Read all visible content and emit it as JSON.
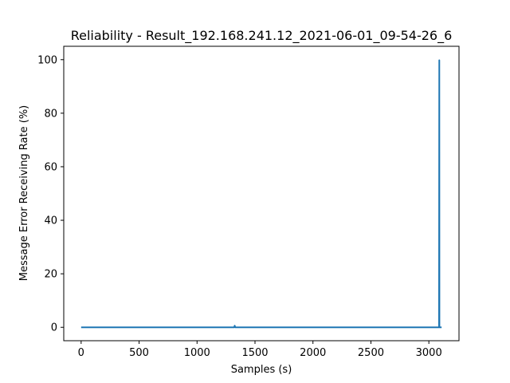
{
  "chart_data": {
    "type": "line",
    "title": "Reliability - Result_192.168.241.12_2021-06-01_09-54-26_6",
    "xlabel": "Samples (s)",
    "ylabel": "Message Error Receiving Rate (%)",
    "xlim": [
      -150,
      3260
    ],
    "ylim": [
      -5,
      105
    ],
    "xticks": [
      0,
      500,
      1000,
      1500,
      2000,
      2500,
      3000
    ],
    "yticks": [
      0,
      20,
      40,
      60,
      80,
      100
    ],
    "grid": false,
    "legend": "none",
    "series": [
      {
        "color": "#1f77b4",
        "points": [
          [
            0,
            0
          ],
          [
            1320,
            0
          ],
          [
            1325,
            0.6
          ],
          [
            1330,
            0
          ],
          [
            3088,
            0
          ],
          [
            3090,
            99.8
          ],
          [
            3091,
            0
          ],
          [
            3110,
            0
          ]
        ]
      }
    ]
  }
}
